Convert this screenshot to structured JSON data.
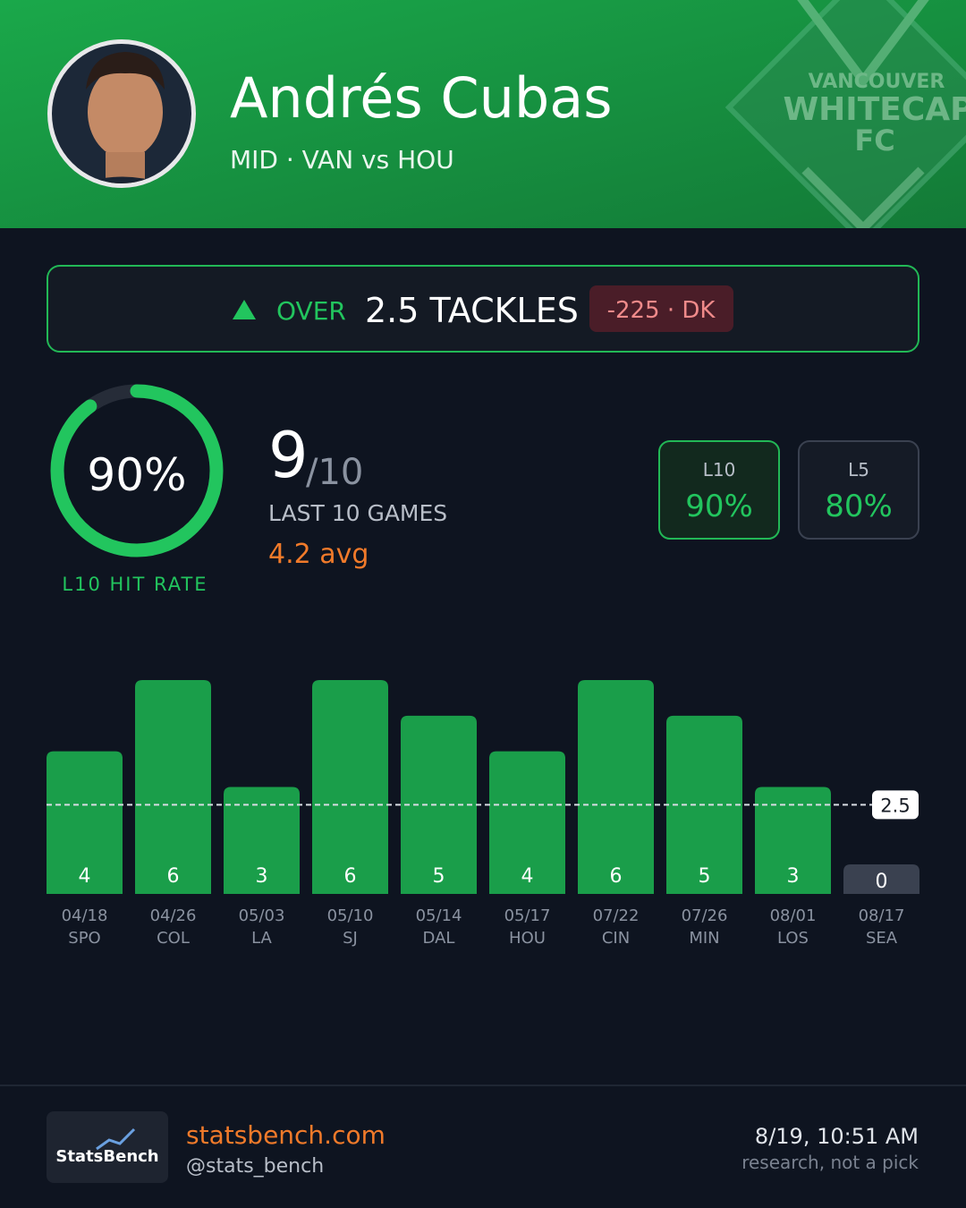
{
  "header": {
    "name": "Andrés Cubas",
    "subtitle": "MID · VAN vs HOU",
    "logo_lines": [
      "VANCOUVER",
      "WHITECAP",
      "FC"
    ]
  },
  "prop": {
    "direction": "OVER",
    "line": "2.5 TACKLES",
    "odds": "-225 · DK"
  },
  "hit_rate": {
    "value": 90,
    "label": "90%",
    "caption": "L10 HIT RATE"
  },
  "record": {
    "hits": "9",
    "of": "/10",
    "caption": "LAST 10 GAMES",
    "avg": "4.2 avg"
  },
  "splits": [
    {
      "label": "L10",
      "value": "90%"
    },
    {
      "label": "L5",
      "value": "80%"
    }
  ],
  "chart_data": {
    "type": "bar",
    "categories": [
      "04/18",
      "04/26",
      "05/03",
      "05/10",
      "05/14",
      "05/17",
      "07/22",
      "07/26",
      "08/01",
      "08/17"
    ],
    "opponents": [
      "SPO",
      "COL",
      "LA",
      "SJ",
      "DAL",
      "HOU",
      "CIN",
      "MIN",
      "LOS",
      "SEA"
    ],
    "values": [
      4,
      6,
      3,
      6,
      5,
      4,
      6,
      5,
      3,
      0
    ],
    "line": 2.5,
    "ylim": [
      0,
      6
    ],
    "hit_color": "#1a9e4a",
    "miss_color": "#3a4150"
  },
  "footer": {
    "brand": "StatsBench",
    "site": "statsbench.com",
    "handle": "@stats_bench",
    "timestamp": "8/19, 10:51 AM",
    "disclaimer": "research, not a pick"
  }
}
